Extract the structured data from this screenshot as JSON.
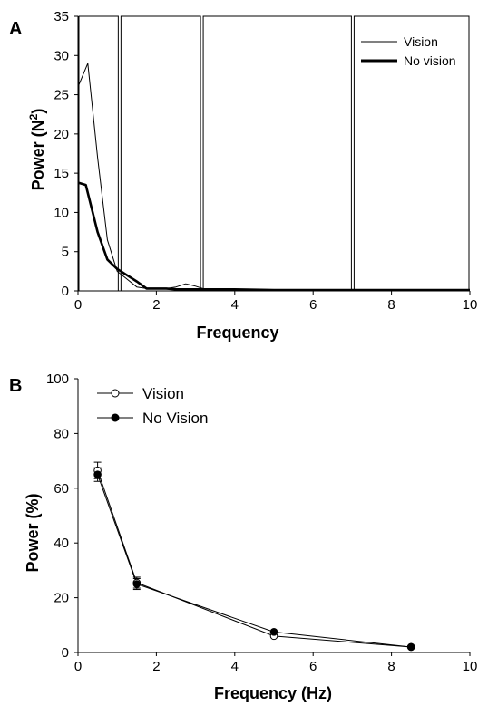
{
  "chart_data": [
    {
      "panel_label": "A",
      "type": "line",
      "xlabel": "Frequency",
      "ylabel": "Power (N",
      "ylabel_sup": "2",
      "ylabel_close": ")",
      "xlim": [
        0,
        10
      ],
      "ylim": [
        0,
        35
      ],
      "xticks": [
        "0",
        "2",
        "4",
        "6",
        "8",
        "10"
      ],
      "yticks": [
        "0",
        "5",
        "10",
        "15",
        "20",
        "25",
        "30",
        "35"
      ],
      "band_edges": [
        0,
        1.05,
        3.15,
        7.0,
        10
      ],
      "legend_position": "top-right",
      "series": [
        {
          "name": "Vision",
          "style": "thin",
          "x": [
            0,
            0.25,
            0.5,
            0.75,
            1.0,
            1.25,
            1.5,
            1.75,
            2.0,
            2.25,
            2.5,
            2.75,
            3.0,
            3.25,
            3.5,
            4,
            5,
            6,
            7,
            8,
            9,
            10
          ],
          "y": [
            26,
            29,
            17,
            6.5,
            2.5,
            1.5,
            0.5,
            0.3,
            0.3,
            0.3,
            0.5,
            0.9,
            0.6,
            0.2,
            0.2,
            0.1,
            0.05,
            0.05,
            0.05,
            0.05,
            0.05,
            0.05
          ]
        },
        {
          "name": "No vision",
          "style": "thick",
          "x": [
            0,
            0.2,
            0.5,
            0.75,
            1.0,
            1.25,
            1.5,
            1.75,
            2.0,
            2.25,
            2.5,
            2.75,
            3.0,
            3.25,
            3.5,
            4,
            5,
            6,
            7,
            8,
            9,
            10
          ],
          "y": [
            13.8,
            13.5,
            7.5,
            4.0,
            2.8,
            2.0,
            1.2,
            0.3,
            0.3,
            0.3,
            0.2,
            0.2,
            0.2,
            0.2,
            0.2,
            0.2,
            0.1,
            0.1,
            0.1,
            0.1,
            0.1,
            0.1
          ]
        }
      ]
    },
    {
      "panel_label": "B",
      "type": "line",
      "xlabel": "Frequency (Hz)",
      "ylabel": "Power (%)",
      "xlim": [
        0,
        10
      ],
      "ylim": [
        0,
        100
      ],
      "xticks": [
        "0",
        "2",
        "4",
        "6",
        "8",
        "10"
      ],
      "yticks": [
        "0",
        "20",
        "40",
        "60",
        "80",
        "100"
      ],
      "legend_position": "top-left",
      "series": [
        {
          "name": "Vision",
          "marker": "open-circle",
          "x": [
            0.5,
            1.5,
            5.0,
            8.5
          ],
          "y": [
            66.5,
            25.5,
            6.0,
            2.0
          ],
          "err": [
            3,
            2,
            0,
            0
          ]
        },
        {
          "name": "No Vision",
          "marker": "filled-circle",
          "x": [
            0.5,
            1.5,
            5.0,
            8.5
          ],
          "y": [
            65.0,
            25.0,
            7.5,
            2.0
          ],
          "err": [
            2.5,
            2,
            0,
            0
          ]
        }
      ]
    }
  ]
}
